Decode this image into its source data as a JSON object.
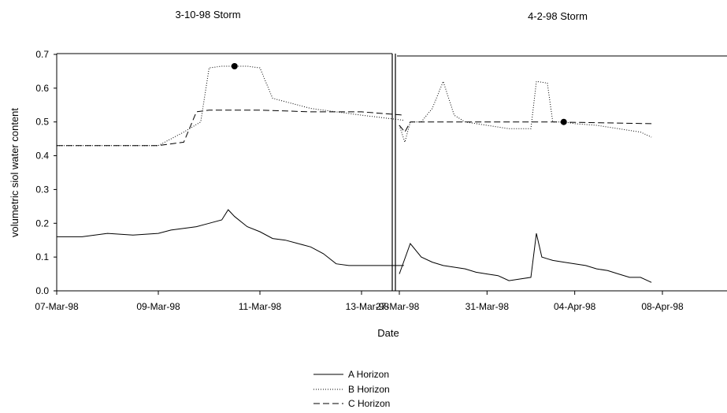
{
  "chart_data": [
    {
      "type": "line",
      "title": "3-10-98 Storm",
      "xlabel": "Date",
      "ylabel": "volumetric siol water content",
      "xlim": [
        "07-Mar-98",
        "13-Mar-98"
      ],
      "ylim": [
        0,
        0.7
      ],
      "yticks": [
        "0.0",
        "0.1",
        "0.2",
        "0.3",
        "0.4",
        "0.5",
        "0.6",
        "0.7"
      ],
      "xticks": [
        "07-Mar-98",
        "09-Mar-98",
        "11-Mar-98",
        "13-Mar-98"
      ],
      "grid": false,
      "series": [
        {
          "name": "A Horizon",
          "x": [
            "07-Mar-98",
            "07-Mar-98 12:00",
            "08-Mar-98",
            "08-Mar-98 12:00",
            "09-Mar-98",
            "09-Mar-98 06:00",
            "09-Mar-98 12:00",
            "09-Mar-98 18:00",
            "10-Mar-98",
            "10-Mar-98 06:00",
            "10-Mar-98 09:00",
            "10-Mar-98 12:00",
            "10-Mar-98 18:00",
            "11-Mar-98",
            "11-Mar-98 06:00",
            "11-Mar-98 12:00",
            "11-Mar-98 18:00",
            "12-Mar-98",
            "12-Mar-98 06:00",
            "12-Mar-98 12:00",
            "12-Mar-98 18:00",
            "13-Mar-98",
            "13-Mar-98 12:00",
            "13-Mar-98 20:00"
          ],
          "y": [
            0.16,
            0.16,
            0.17,
            0.165,
            0.17,
            0.18,
            0.185,
            0.19,
            0.2,
            0.21,
            0.24,
            0.22,
            0.19,
            0.175,
            0.155,
            0.15,
            0.14,
            0.13,
            0.11,
            0.08,
            0.075,
            0.075,
            0.075,
            0.075
          ]
        },
        {
          "name": "B Horizon",
          "x": [
            "07-Mar-98",
            "08-Mar-98",
            "09-Mar-98",
            "09-Mar-98 12:00",
            "09-Mar-98 20:00",
            "10-Mar-98",
            "10-Mar-98 06:00",
            "10-Mar-98 18:00",
            "11-Mar-98",
            "11-Mar-98 06:00",
            "11-Mar-98 18:00",
            "12-Mar-98",
            "12-Mar-98 12:00",
            "13-Mar-98",
            "13-Mar-98 20:00"
          ],
          "y": [
            0.43,
            0.43,
            0.43,
            0.47,
            0.5,
            0.66,
            0.665,
            0.665,
            0.66,
            0.57,
            0.55,
            0.54,
            0.53,
            0.52,
            0.505
          ]
        },
        {
          "name": "C Horizon",
          "x": [
            "07-Mar-98",
            "08-Mar-98",
            "09-Mar-98",
            "09-Mar-98 12:00",
            "09-Mar-98 18:00",
            "10-Mar-98",
            "11-Mar-98",
            "12-Mar-98",
            "13-Mar-98",
            "13-Mar-98 20:00"
          ],
          "y": [
            0.43,
            0.43,
            0.43,
            0.44,
            0.53,
            0.535,
            0.535,
            0.53,
            0.53,
            0.52
          ]
        }
      ],
      "annotations": [
        {
          "marker": "filled-circle",
          "x": "10-Mar-98 12:00",
          "y": 0.665
        }
      ]
    },
    {
      "type": "line",
      "title": "4-2-98 Storm",
      "xlabel": "Date",
      "xlim": [
        "27-Mar-98",
        "08-Apr-98"
      ],
      "ylim": [
        0,
        0.7
      ],
      "xticks": [
        "27-Mar-98",
        "31-Mar-98",
        "04-Apr-98",
        "08-Apr-98"
      ],
      "grid": false,
      "series": [
        {
          "name": "A Horizon",
          "x": [
            "27-Mar-98",
            "27-Mar-98 12:00",
            "28-Mar-98",
            "28-Mar-98 12:00",
            "29-Mar-98",
            "29-Mar-98 12:00",
            "30-Mar-98",
            "30-Mar-98 12:00",
            "31-Mar-98",
            "31-Mar-98 12:00",
            "01-Apr-98",
            "01-Apr-98 12:00",
            "02-Apr-98",
            "02-Apr-98 06:00",
            "02-Apr-98 12:00",
            "02-Apr-98 18:00",
            "03-Apr-98",
            "03-Apr-98 12:00",
            "04-Apr-98",
            "04-Apr-98 12:00",
            "05-Apr-98",
            "05-Apr-98 12:00",
            "06-Apr-98",
            "06-Apr-98 12:00",
            "07-Apr-98",
            "07-Apr-98 12:00"
          ],
          "y": [
            0.05,
            0.14,
            0.1,
            0.085,
            0.075,
            0.07,
            0.065,
            0.055,
            0.05,
            0.045,
            0.03,
            0.035,
            0.04,
            0.17,
            0.1,
            0.095,
            0.09,
            0.085,
            0.08,
            0.075,
            0.065,
            0.06,
            0.05,
            0.04,
            0.04,
            0.025
          ]
        },
        {
          "name": "B Horizon",
          "x": [
            "27-Mar-98",
            "27-Mar-98 06:00",
            "27-Mar-98 12:00",
            "28-Mar-98",
            "28-Mar-98 12:00",
            "29-Mar-98",
            "29-Mar-98 12:00",
            "30-Mar-98",
            "31-Mar-98",
            "01-Apr-98",
            "01-Apr-98 12:00",
            "02-Apr-98",
            "02-Apr-98 06:00",
            "02-Apr-98 18:00",
            "03-Apr-98",
            "03-Apr-98 12:00",
            "04-Apr-98",
            "05-Apr-98",
            "06-Apr-98",
            "07-Apr-98",
            "07-Apr-98 12:00"
          ],
          "y": [
            0.49,
            0.44,
            0.5,
            0.5,
            0.54,
            0.62,
            0.52,
            0.5,
            0.49,
            0.48,
            0.48,
            0.48,
            0.62,
            0.615,
            0.5,
            0.5,
            0.495,
            0.49,
            0.48,
            0.47,
            0.455
          ]
        },
        {
          "name": "C Horizon",
          "x": [
            "27-Mar-98",
            "27-Mar-98 06:00",
            "27-Mar-98 12:00",
            "28-Mar-98",
            "31-Mar-98",
            "03-Apr-98",
            "07-Apr-98 12:00"
          ],
          "y": [
            0.49,
            0.47,
            0.5,
            0.5,
            0.5,
            0.5,
            0.495
          ]
        }
      ],
      "annotations": [
        {
          "marker": "filled-circle",
          "x": "03-Apr-98 12:00",
          "y": 0.5
        }
      ]
    }
  ],
  "legend": {
    "placement": "bottom-center",
    "entries": [
      {
        "label": "A Horizon",
        "style": "solid"
      },
      {
        "label": "B Horizon",
        "style": "dotted"
      },
      {
        "label": "C Horizon",
        "style": "dashed"
      }
    ]
  }
}
